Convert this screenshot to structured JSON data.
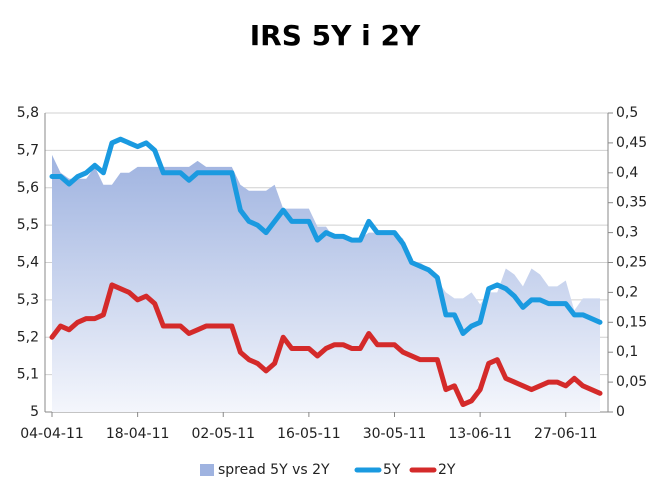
{
  "chart_data": {
    "type": "line",
    "title": "IRS 5Y i 2Y",
    "categories": [
      "04-04-11",
      null,
      null,
      null,
      null,
      null,
      null,
      null,
      null,
      null,
      "18-04-11",
      null,
      null,
      null,
      null,
      null,
      null,
      null,
      null,
      null,
      "02-05-11",
      null,
      null,
      null,
      null,
      null,
      null,
      null,
      null,
      null,
      "16-05-11",
      null,
      null,
      null,
      null,
      null,
      null,
      null,
      null,
      null,
      "30-05-11",
      null,
      null,
      null,
      null,
      null,
      null,
      null,
      null,
      null,
      "13-06-11",
      null,
      null,
      null,
      null,
      null,
      null,
      null,
      null,
      null,
      "27-06-11",
      null,
      null,
      null,
      null
    ],
    "series": [
      {
        "name": "spread 5Y vs 2Y",
        "color": "#9fb3e0",
        "axis": "y2",
        "style": "area",
        "values": [
          0.43,
          0.4,
          0.39,
          0.39,
          0.39,
          0.41,
          0.38,
          0.38,
          0.4,
          0.4,
          0.41,
          0.41,
          0.41,
          0.41,
          0.41,
          0.41,
          0.41,
          0.42,
          0.41,
          0.41,
          0.41,
          0.41,
          0.38,
          0.37,
          0.37,
          0.37,
          0.38,
          0.34,
          0.34,
          0.34,
          0.34,
          0.31,
          0.31,
          0.29,
          0.29,
          0.29,
          0.29,
          0.3,
          0.3,
          0.3,
          0.3,
          0.29,
          0.25,
          0.25,
          0.24,
          0.22,
          0.2,
          0.19,
          0.19,
          0.2,
          0.18,
          0.2,
          0.2,
          0.24,
          0.23,
          0.21,
          0.24,
          0.23,
          0.21,
          0.21,
          0.22,
          0.17,
          0.19,
          0.19,
          0.19
        ]
      },
      {
        "name": "5Y",
        "color": "#1a9ae0",
        "axis": "y",
        "values": [
          5.63,
          5.63,
          5.61,
          5.63,
          5.64,
          5.66,
          5.64,
          5.72,
          5.73,
          5.72,
          5.71,
          5.72,
          5.7,
          5.64,
          5.64,
          5.64,
          5.62,
          5.64,
          5.64,
          5.64,
          5.64,
          5.64,
          5.54,
          5.51,
          5.5,
          5.48,
          5.51,
          5.54,
          5.51,
          5.51,
          5.51,
          5.46,
          5.48,
          5.47,
          5.47,
          5.46,
          5.46,
          5.51,
          5.48,
          5.48,
          5.48,
          5.45,
          5.4,
          5.39,
          5.38,
          5.36,
          5.26,
          5.26,
          5.21,
          5.23,
          5.24,
          5.33,
          5.34,
          5.33,
          5.31,
          5.28,
          5.3,
          5.3,
          5.29,
          5.29,
          5.29,
          5.26,
          5.26,
          5.25,
          5.24
        ]
      },
      {
        "name": "2Y",
        "color": "#d42a2a",
        "axis": "y",
        "values": [
          5.2,
          5.23,
          5.22,
          5.24,
          5.25,
          5.25,
          5.26,
          5.34,
          5.33,
          5.32,
          5.3,
          5.31,
          5.29,
          5.23,
          5.23,
          5.23,
          5.21,
          5.22,
          5.23,
          5.23,
          5.23,
          5.23,
          5.16,
          5.14,
          5.13,
          5.11,
          5.13,
          5.2,
          5.17,
          5.17,
          5.17,
          5.15,
          5.17,
          5.18,
          5.18,
          5.17,
          5.17,
          5.21,
          5.18,
          5.18,
          5.18,
          5.16,
          5.15,
          5.14,
          5.14,
          5.14,
          5.06,
          5.07,
          5.02,
          5.03,
          5.06,
          5.13,
          5.14,
          5.09,
          5.08,
          5.07,
          5.06,
          5.07,
          5.08,
          5.08,
          5.07,
          5.09,
          5.07,
          5.06,
          5.05
        ]
      }
    ],
    "ylim": [
      5,
      5.8
    ],
    "yticks": [
      5,
      {
        "value": 5.1,
        "label": "5,1"
      },
      {
        "value": 5.2,
        "label": "5,2"
      },
      {
        "value": 5.3,
        "label": "5,3"
      },
      {
        "value": 5.4,
        "label": "5,4"
      },
      {
        "value": 5.5,
        "label": "5,5"
      },
      {
        "value": 5.6,
        "label": "5,6"
      },
      {
        "value": 5.7,
        "label": "5,7"
      },
      {
        "value": 5.8,
        "label": "5,8"
      }
    ],
    "y2lim": [
      0,
      0.5
    ],
    "y2ticks": [
      0,
      {
        "value": 0.05,
        "label": "0,05"
      },
      {
        "value": 0.1,
        "label": "0,1"
      },
      {
        "value": 0.15,
        "label": "0,15"
      },
      {
        "value": 0.2,
        "label": "0,2"
      },
      {
        "value": 0.25,
        "label": "0,25"
      },
      {
        "value": 0.3,
        "label": "0,3"
      },
      {
        "value": 0.35,
        "label": "0,35"
      },
      {
        "value": 0.4,
        "label": "0,4"
      },
      {
        "value": 0.45,
        "label": "0,45"
      },
      {
        "value": 0.5,
        "label": "0,5"
      }
    ],
    "grid": true,
    "legend": "bottom"
  }
}
